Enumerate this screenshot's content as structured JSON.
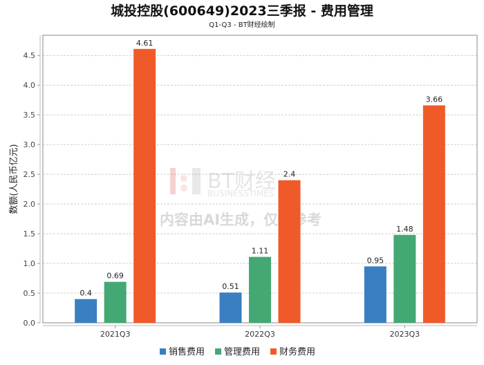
{
  "chart_data": {
    "type": "bar",
    "title": "城投控股(600649)2023三季报 - 费用管理",
    "subtitle": "Q1-Q3 - BT财经绘制",
    "xlabel": "",
    "ylabel": "数额(人民币亿元)",
    "ylim": [
      0,
      4.84
    ],
    "yticks": [
      "0.0",
      "0.5",
      "1.0",
      "1.5",
      "2.0",
      "2.5",
      "3.0",
      "3.5",
      "4.0",
      "4.5"
    ],
    "grid": true,
    "legend_position": "bottom",
    "categories": [
      "2021Q3",
      "2022Q3",
      "2023Q3"
    ],
    "series": [
      {
        "name": "销售费用",
        "color": "#3a7fc1",
        "values": [
          0.4,
          0.51,
          0.95
        ],
        "labels": [
          "0.4",
          "0.51",
          "0.95"
        ]
      },
      {
        "name": "管理费用",
        "color": "#44a874",
        "values": [
          0.69,
          1.11,
          1.48
        ],
        "labels": [
          "0.69",
          "1.11",
          "1.48"
        ]
      },
      {
        "name": "财务费用",
        "color": "#f05a28",
        "values": [
          4.61,
          2.4,
          3.66
        ],
        "labels": [
          "4.61",
          "2.4",
          "3.66"
        ]
      }
    ]
  },
  "watermark": {
    "brand": "BT财经",
    "brand_sub": "BUSINESSTIMES",
    "notice": "内容由AI生成，仅供参考"
  }
}
